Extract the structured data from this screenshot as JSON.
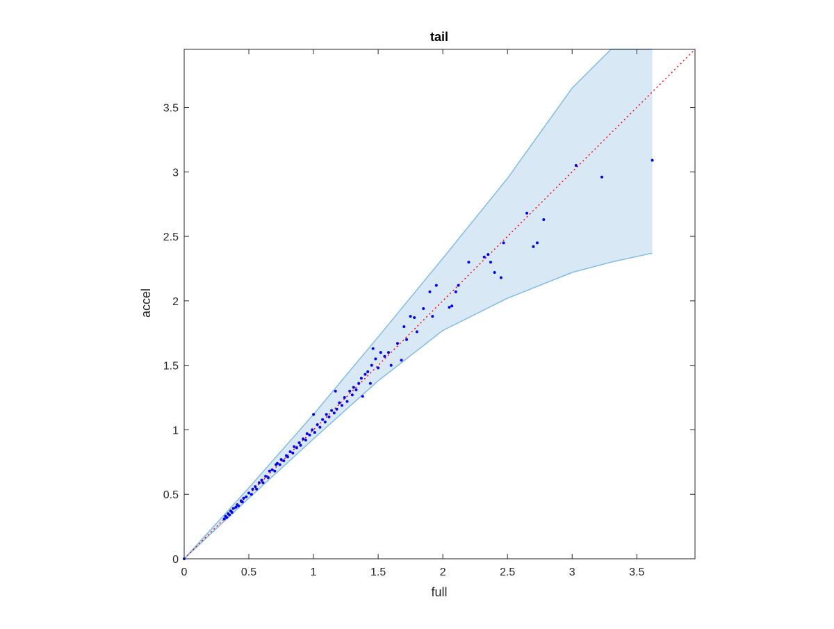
{
  "chart_data": {
    "type": "scatter",
    "title": "tail",
    "xlabel": "full",
    "ylabel": "accel",
    "xlim": [
      0,
      3.95
    ],
    "ylim": [
      0,
      3.95
    ],
    "xticks": [
      0,
      0.5,
      1,
      1.5,
      2,
      2.5,
      3,
      3.5
    ],
    "xtick_labels": [
      "0",
      "0.5",
      "1",
      "1.5",
      "2",
      "2.5",
      "3",
      "3.5"
    ],
    "yticks": [
      0,
      0.5,
      1,
      1.5,
      2,
      2.5,
      3,
      3.5
    ],
    "ytick_labels": [
      "0",
      "0.5",
      "1",
      "1.5",
      "2",
      "2.5",
      "3",
      "3.5"
    ],
    "grid": false,
    "box": true,
    "colors": {
      "points": "#0000ff",
      "band_fill": "#d9e8f5",
      "band_edge": "#7fbde4",
      "diagonal": "#ff0000",
      "axes": "#262626"
    },
    "band": {
      "x": [
        0,
        0.5,
        1.0,
        1.5,
        2.0,
        2.5,
        3.0,
        3.3,
        3.62
      ],
      "upper": [
        0,
        0.55,
        1.12,
        1.72,
        2.33,
        2.95,
        3.65,
        3.95,
        3.95
      ],
      "lower": [
        0,
        0.47,
        0.93,
        1.38,
        1.77,
        2.02,
        2.22,
        2.3,
        2.37
      ]
    },
    "diagonal": {
      "style": "dotted",
      "x": [
        0,
        3.95
      ],
      "y": [
        0,
        3.95
      ]
    },
    "series": [
      {
        "points": [
          [
            0,
            0
          ],
          [
            0.31,
            0.31
          ],
          [
            0.32,
            0.33
          ],
          [
            0.33,
            0.32
          ],
          [
            0.34,
            0.35
          ],
          [
            0.35,
            0.34
          ],
          [
            0.36,
            0.37
          ],
          [
            0.37,
            0.36
          ],
          [
            0.38,
            0.39
          ],
          [
            0.4,
            0.4
          ],
          [
            0.41,
            0.42
          ],
          [
            0.42,
            0.41
          ],
          [
            0.44,
            0.45
          ],
          [
            0.45,
            0.44
          ],
          [
            0.46,
            0.47
          ],
          [
            0.48,
            0.48
          ],
          [
            0.5,
            0.51
          ],
          [
            0.52,
            0.5
          ],
          [
            0.53,
            0.54
          ],
          [
            0.55,
            0.56
          ],
          [
            0.56,
            0.54
          ],
          [
            0.58,
            0.59
          ],
          [
            0.6,
            0.61
          ],
          [
            0.61,
            0.59
          ],
          [
            0.63,
            0.64
          ],
          [
            0.65,
            0.63
          ],
          [
            0.66,
            0.68
          ],
          [
            0.68,
            0.69
          ],
          [
            0.7,
            0.68
          ],
          [
            0.71,
            0.73
          ],
          [
            0.72,
            0.74
          ],
          [
            0.74,
            0.73
          ],
          [
            0.75,
            0.77
          ],
          [
            0.77,
            0.76
          ],
          [
            0.79,
            0.8
          ],
          [
            0.8,
            0.79
          ],
          [
            0.82,
            0.83
          ],
          [
            0.84,
            0.82
          ],
          [
            0.85,
            0.87
          ],
          [
            0.87,
            0.86
          ],
          [
            0.89,
            0.9
          ],
          [
            0.9,
            0.88
          ],
          [
            0.92,
            0.93
          ],
          [
            0.94,
            0.92
          ],
          [
            0.95,
            0.97
          ],
          [
            0.97,
            0.96
          ],
          [
            0.99,
            1.0
          ],
          [
            1.0,
            1.12
          ],
          [
            1.01,
            0.98
          ],
          [
            1.03,
            1.04
          ],
          [
            1.05,
            1.02
          ],
          [
            1.07,
            1.08
          ],
          [
            1.09,
            1.06
          ],
          [
            1.1,
            1.12
          ],
          [
            1.12,
            1.1
          ],
          [
            1.14,
            1.15
          ],
          [
            1.16,
            1.13
          ],
          [
            1.17,
            1.3
          ],
          [
            1.18,
            1.16
          ],
          [
            1.2,
            1.21
          ],
          [
            1.22,
            1.19
          ],
          [
            1.24,
            1.25
          ],
          [
            1.26,
            1.22
          ],
          [
            1.28,
            1.3
          ],
          [
            1.3,
            1.27
          ],
          [
            1.31,
            1.33
          ],
          [
            1.33,
            1.31
          ],
          [
            1.35,
            1.36
          ],
          [
            1.37,
            1.4
          ],
          [
            1.38,
            1.26
          ],
          [
            1.4,
            1.43
          ],
          [
            1.42,
            1.45
          ],
          [
            1.44,
            1.36
          ],
          [
            1.45,
            1.5
          ],
          [
            1.46,
            1.63
          ],
          [
            1.48,
            1.55
          ],
          [
            1.5,
            1.48
          ],
          [
            1.52,
            1.6
          ],
          [
            1.55,
            1.57
          ],
          [
            1.58,
            1.6
          ],
          [
            1.6,
            1.5
          ],
          [
            1.65,
            1.67
          ],
          [
            1.68,
            1.54
          ],
          [
            1.7,
            1.8
          ],
          [
            1.72,
            1.7
          ],
          [
            1.75,
            1.88
          ],
          [
            1.78,
            1.87
          ],
          [
            1.8,
            1.76
          ],
          [
            1.85,
            1.94
          ],
          [
            1.9,
            2.07
          ],
          [
            1.92,
            1.88
          ],
          [
            1.95,
            2.12
          ],
          [
            2.05,
            1.95
          ],
          [
            2.07,
            1.96
          ],
          [
            2.1,
            2.07
          ],
          [
            2.12,
            2.12
          ],
          [
            2.2,
            2.3
          ],
          [
            2.32,
            2.34
          ],
          [
            2.35,
            2.36
          ],
          [
            2.37,
            2.3
          ],
          [
            2.4,
            2.22
          ],
          [
            2.45,
            2.18
          ],
          [
            2.47,
            2.45
          ],
          [
            2.65,
            2.68
          ],
          [
            2.7,
            2.42
          ],
          [
            2.73,
            2.45
          ],
          [
            2.78,
            2.63
          ],
          [
            3.03,
            3.05
          ],
          [
            3.23,
            2.96
          ],
          [
            3.62,
            3.09
          ]
        ]
      }
    ]
  }
}
